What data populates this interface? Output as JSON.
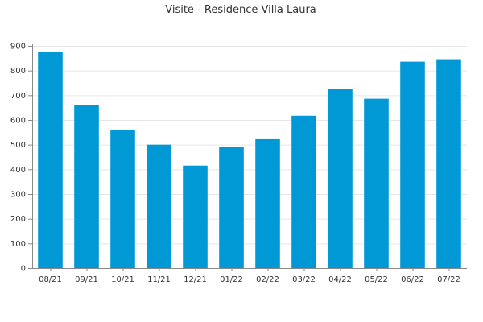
{
  "chart_data": {
    "type": "bar",
    "title": "Visite - Residence Villa Laura",
    "xlabel": "",
    "ylabel": "",
    "categories": [
      "08/21",
      "09/21",
      "10/21",
      "11/21",
      "12/21",
      "01/22",
      "02/22",
      "03/22",
      "04/22",
      "05/22",
      "06/22",
      "07/22"
    ],
    "values": [
      875,
      660,
      560,
      500,
      415,
      490,
      522,
      617,
      725,
      686,
      836,
      846
    ],
    "ylim": [
      0,
      900
    ],
    "yticks": [
      0,
      100,
      200,
      300,
      400,
      500,
      600,
      700,
      800,
      900
    ],
    "grid": true,
    "legend": "none",
    "bar_color": "#0099d6",
    "grid_color": "#e6e6e6",
    "axis_color": "#888888"
  }
}
